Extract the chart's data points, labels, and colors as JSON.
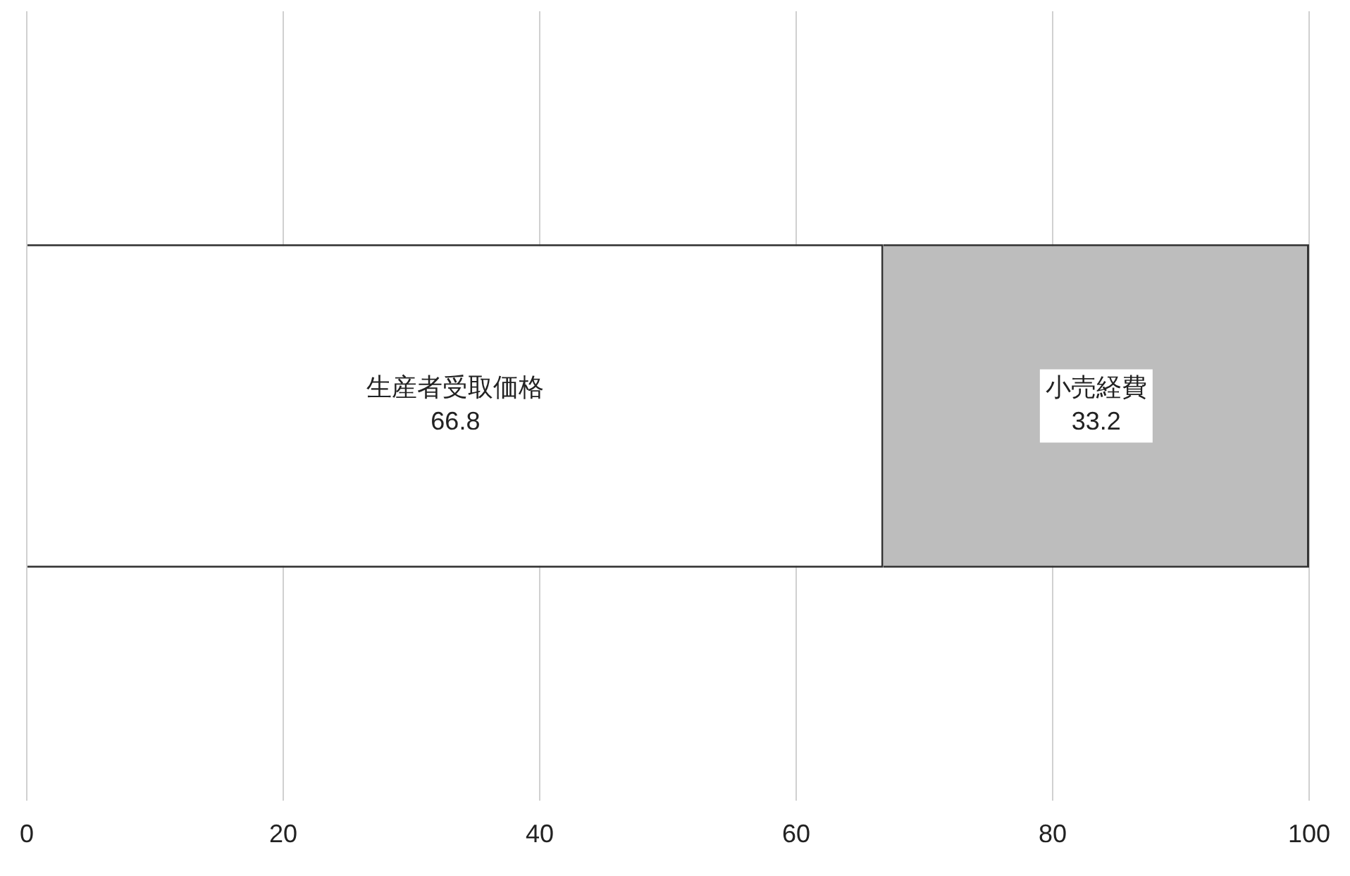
{
  "chart_data": {
    "type": "bar",
    "orientation": "horizontal",
    "stacked": true,
    "categories": [
      null
    ],
    "series": [
      {
        "name": "生産者受取価格",
        "color": "#ffffff",
        "values": [
          66.8
        ]
      },
      {
        "name": "小売経費",
        "color": "#bdbdbd",
        "values": [
          33.2
        ]
      }
    ],
    "xlim": [
      0,
      100
    ],
    "xticks": [
      0,
      20,
      40,
      60,
      80,
      100
    ],
    "grid": "x",
    "legend": false,
    "data_labels": true
  }
}
